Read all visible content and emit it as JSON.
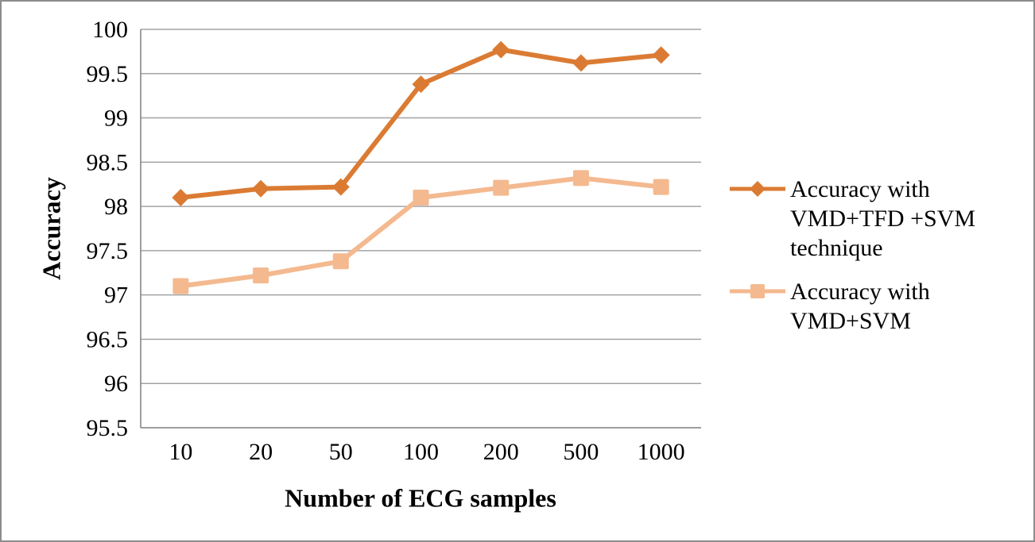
{
  "figure": {
    "background": "#FFFFFF",
    "border_color": "#8C8C8C"
  },
  "chart_data": {
    "type": "line",
    "title": "",
    "xlabel": "Number of ECG samples",
    "ylabel": "Accuracy",
    "categories": [
      "10",
      "20",
      "50",
      "100",
      "200",
      "500",
      "1000"
    ],
    "series": [
      {
        "name": "Accuracy with VMD+TFD +SVM technique",
        "legend_lines": [
          "Accuracy with",
          "VMD+TFD +SVM",
          "technique"
        ],
        "marker": "diamond",
        "color": "#DB7B33",
        "values": [
          98.1,
          98.2,
          98.22,
          99.38,
          99.77,
          99.62,
          99.71
        ]
      },
      {
        "name": "Accuracy with VMD+SVM",
        "legend_lines": [
          "Accuracy with",
          "VMD+SVM"
        ],
        "marker": "square",
        "color": "#F4B98F",
        "values": [
          97.1,
          97.22,
          97.38,
          98.1,
          98.21,
          98.32,
          98.22
        ]
      }
    ],
    "ylim": [
      95.5,
      100
    ],
    "ytick_values": [
      95.5,
      96,
      96.5,
      97,
      97.5,
      98,
      98.5,
      99,
      99.5,
      100
    ],
    "ytick_labels": [
      "95.5",
      "96",
      "96.5",
      "97",
      "97.5",
      "98",
      "98.5",
      "99",
      "99.5",
      "100"
    ],
    "grid": true,
    "legend_position": "right",
    "colors": {
      "grid": "#A3A3A3",
      "axis": "#7F7F7F",
      "text": "#000000"
    }
  }
}
